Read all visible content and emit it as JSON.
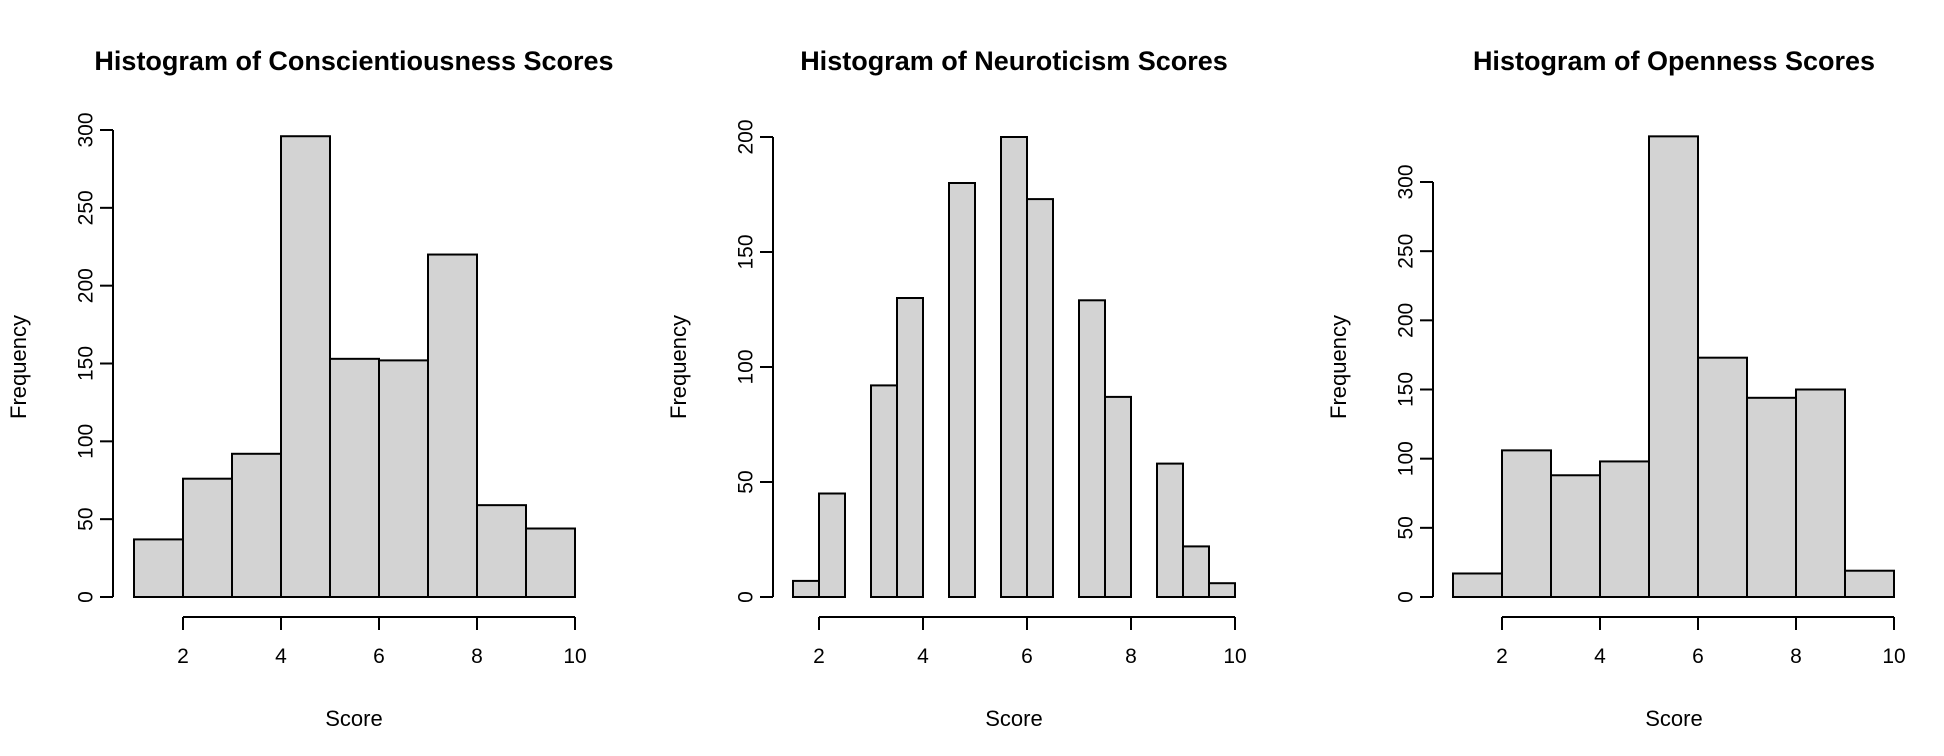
{
  "chart_data": [
    {
      "type": "bar",
      "title": "Histogram of Conscientiousness Scores",
      "xlabel": "Score",
      "ylabel": "Frequency",
      "xlim": [
        1,
        10
      ],
      "ylim": [
        0,
        300
      ],
      "xticks": [
        "2",
        "4",
        "6",
        "8",
        "10"
      ],
      "yticks": [
        "0",
        "50",
        "100",
        "150",
        "200",
        "250",
        "300"
      ],
      "bins": [
        [
          1,
          2
        ],
        [
          2,
          3
        ],
        [
          3,
          4
        ],
        [
          4,
          5
        ],
        [
          5,
          6
        ],
        [
          6,
          7
        ],
        [
          7,
          8
        ],
        [
          8,
          9
        ],
        [
          9,
          10
        ]
      ],
      "values": [
        37,
        76,
        92,
        296,
        153,
        152,
        220,
        59,
        44
      ],
      "grid": false
    },
    {
      "type": "bar",
      "title": "Histogram of Neuroticism Scores",
      "xlabel": "Score",
      "ylabel": "Frequency",
      "xlim": [
        1.5,
        10
      ],
      "ylim": [
        0,
        200
      ],
      "xticks": [
        "2",
        "4",
        "6",
        "8",
        "10"
      ],
      "yticks": [
        "0",
        "50",
        "100",
        "150",
        "200"
      ],
      "bins": [
        [
          1.5,
          2
        ],
        [
          2,
          2.5
        ],
        [
          2.5,
          3
        ],
        [
          3,
          3.5
        ],
        [
          3.5,
          4
        ],
        [
          4,
          4.5
        ],
        [
          4.5,
          5
        ],
        [
          5,
          5.5
        ],
        [
          5.5,
          6
        ],
        [
          6,
          6.5
        ],
        [
          6.5,
          7
        ],
        [
          7,
          7.5
        ],
        [
          7.5,
          8
        ],
        [
          8,
          8.5
        ],
        [
          8.5,
          9
        ],
        [
          9,
          9.5
        ],
        [
          9.5,
          10
        ]
      ],
      "values": [
        7,
        45,
        0,
        92,
        130,
        0,
        180,
        0,
        200,
        173,
        0,
        129,
        87,
        0,
        58,
        22,
        6
      ],
      "grid": false
    },
    {
      "type": "bar",
      "title": "Histogram of Openness Scores",
      "xlabel": "Score",
      "ylabel": "Frequency",
      "xlim": [
        1,
        10
      ],
      "ylim": [
        0,
        300
      ],
      "xticks": [
        "2",
        "4",
        "6",
        "8",
        "10"
      ],
      "yticks": [
        "0",
        "50",
        "100",
        "150",
        "200",
        "250",
        "300"
      ],
      "bins": [
        [
          1,
          2
        ],
        [
          2,
          3
        ],
        [
          3,
          4
        ],
        [
          4,
          5
        ],
        [
          5,
          6
        ],
        [
          6,
          7
        ],
        [
          7,
          8
        ],
        [
          8,
          9
        ],
        [
          9,
          10
        ]
      ],
      "values": [
        17,
        106,
        88,
        98,
        333,
        173,
        144,
        150,
        19
      ],
      "grid": false
    }
  ]
}
